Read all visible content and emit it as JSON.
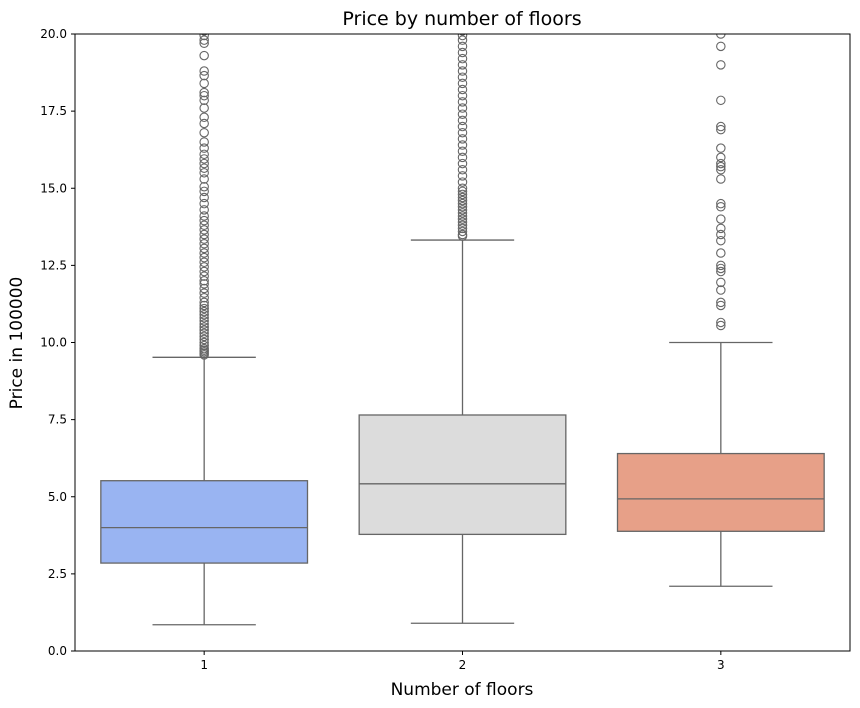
{
  "chart_data": {
    "type": "box",
    "title": "Price by number of floors",
    "xlabel": "Number of floors",
    "ylabel": "Price in 100000",
    "ylim": [
      0,
      20
    ],
    "yticks": [
      "0.0",
      "2.5",
      "5.0",
      "7.5",
      "10.0",
      "12.5",
      "15.0",
      "17.5",
      "20.0"
    ],
    "ytick_values": [
      0,
      2.5,
      5,
      7.5,
      10,
      12.5,
      15,
      17.5,
      20
    ],
    "categories": [
      "1",
      "2",
      "3"
    ],
    "grid": false,
    "legend": "none",
    "boxes": [
      {
        "category": "1",
        "color": "#99b4f2",
        "whisker_low": 0.85,
        "q1": 2.85,
        "median": 4.0,
        "q3": 5.52,
        "whisker_high": 9.52,
        "outliers": [
          9.6,
          9.65,
          9.7,
          9.75,
          9.8,
          9.9,
          10.0,
          10.1,
          10.2,
          10.3,
          10.4,
          10.5,
          10.6,
          10.7,
          10.8,
          10.9,
          11.0,
          11.1,
          11.2,
          11.3,
          11.45,
          11.6,
          11.75,
          11.9,
          12.0,
          12.15,
          12.3,
          12.45,
          12.6,
          12.75,
          12.9,
          13.05,
          13.2,
          13.35,
          13.5,
          13.65,
          13.8,
          13.95,
          14.1,
          14.3,
          14.5,
          14.7,
          14.9,
          15.05,
          15.3,
          15.5,
          15.65,
          15.8,
          15.95,
          16.1,
          16.3,
          16.5,
          16.8,
          17.1,
          17.3,
          17.6,
          17.85,
          18.0,
          18.1,
          18.4,
          18.65,
          18.8,
          19.3,
          19.7,
          19.8,
          19.95,
          20.1
        ]
      },
      {
        "category": "2",
        "color": "#dcdcdc",
        "whisker_low": 0.9,
        "q1": 3.78,
        "median": 5.42,
        "q3": 7.65,
        "whisker_high": 13.32,
        "outliers": [
          13.45,
          13.5,
          13.6,
          13.7,
          13.8,
          13.9,
          14.0,
          14.1,
          14.2,
          14.3,
          14.4,
          14.5,
          14.6,
          14.7,
          14.8,
          14.9,
          15.0,
          15.2,
          15.4,
          15.6,
          15.8,
          16.0,
          16.2,
          16.4,
          16.6,
          16.8,
          17.0,
          17.2,
          17.4,
          17.6,
          17.8,
          18.0,
          18.2,
          18.4,
          18.6,
          18.8,
          19.0,
          19.2,
          19.4,
          19.6,
          19.8,
          19.95,
          20.1
        ]
      },
      {
        "category": "3",
        "color": "#e7a088",
        "whisker_low": 2.1,
        "q1": 3.88,
        "median": 4.93,
        "q3": 6.4,
        "whisker_high": 10.0,
        "outliers": [
          10.55,
          10.65,
          11.2,
          11.3,
          11.7,
          11.95,
          12.3,
          12.4,
          12.5,
          12.9,
          13.3,
          13.5,
          13.7,
          14.0,
          14.4,
          14.5,
          15.3,
          15.6,
          15.7,
          15.8,
          16.0,
          16.3,
          16.9,
          17.0,
          17.85,
          19.0,
          19.6,
          20.0
        ]
      }
    ]
  }
}
